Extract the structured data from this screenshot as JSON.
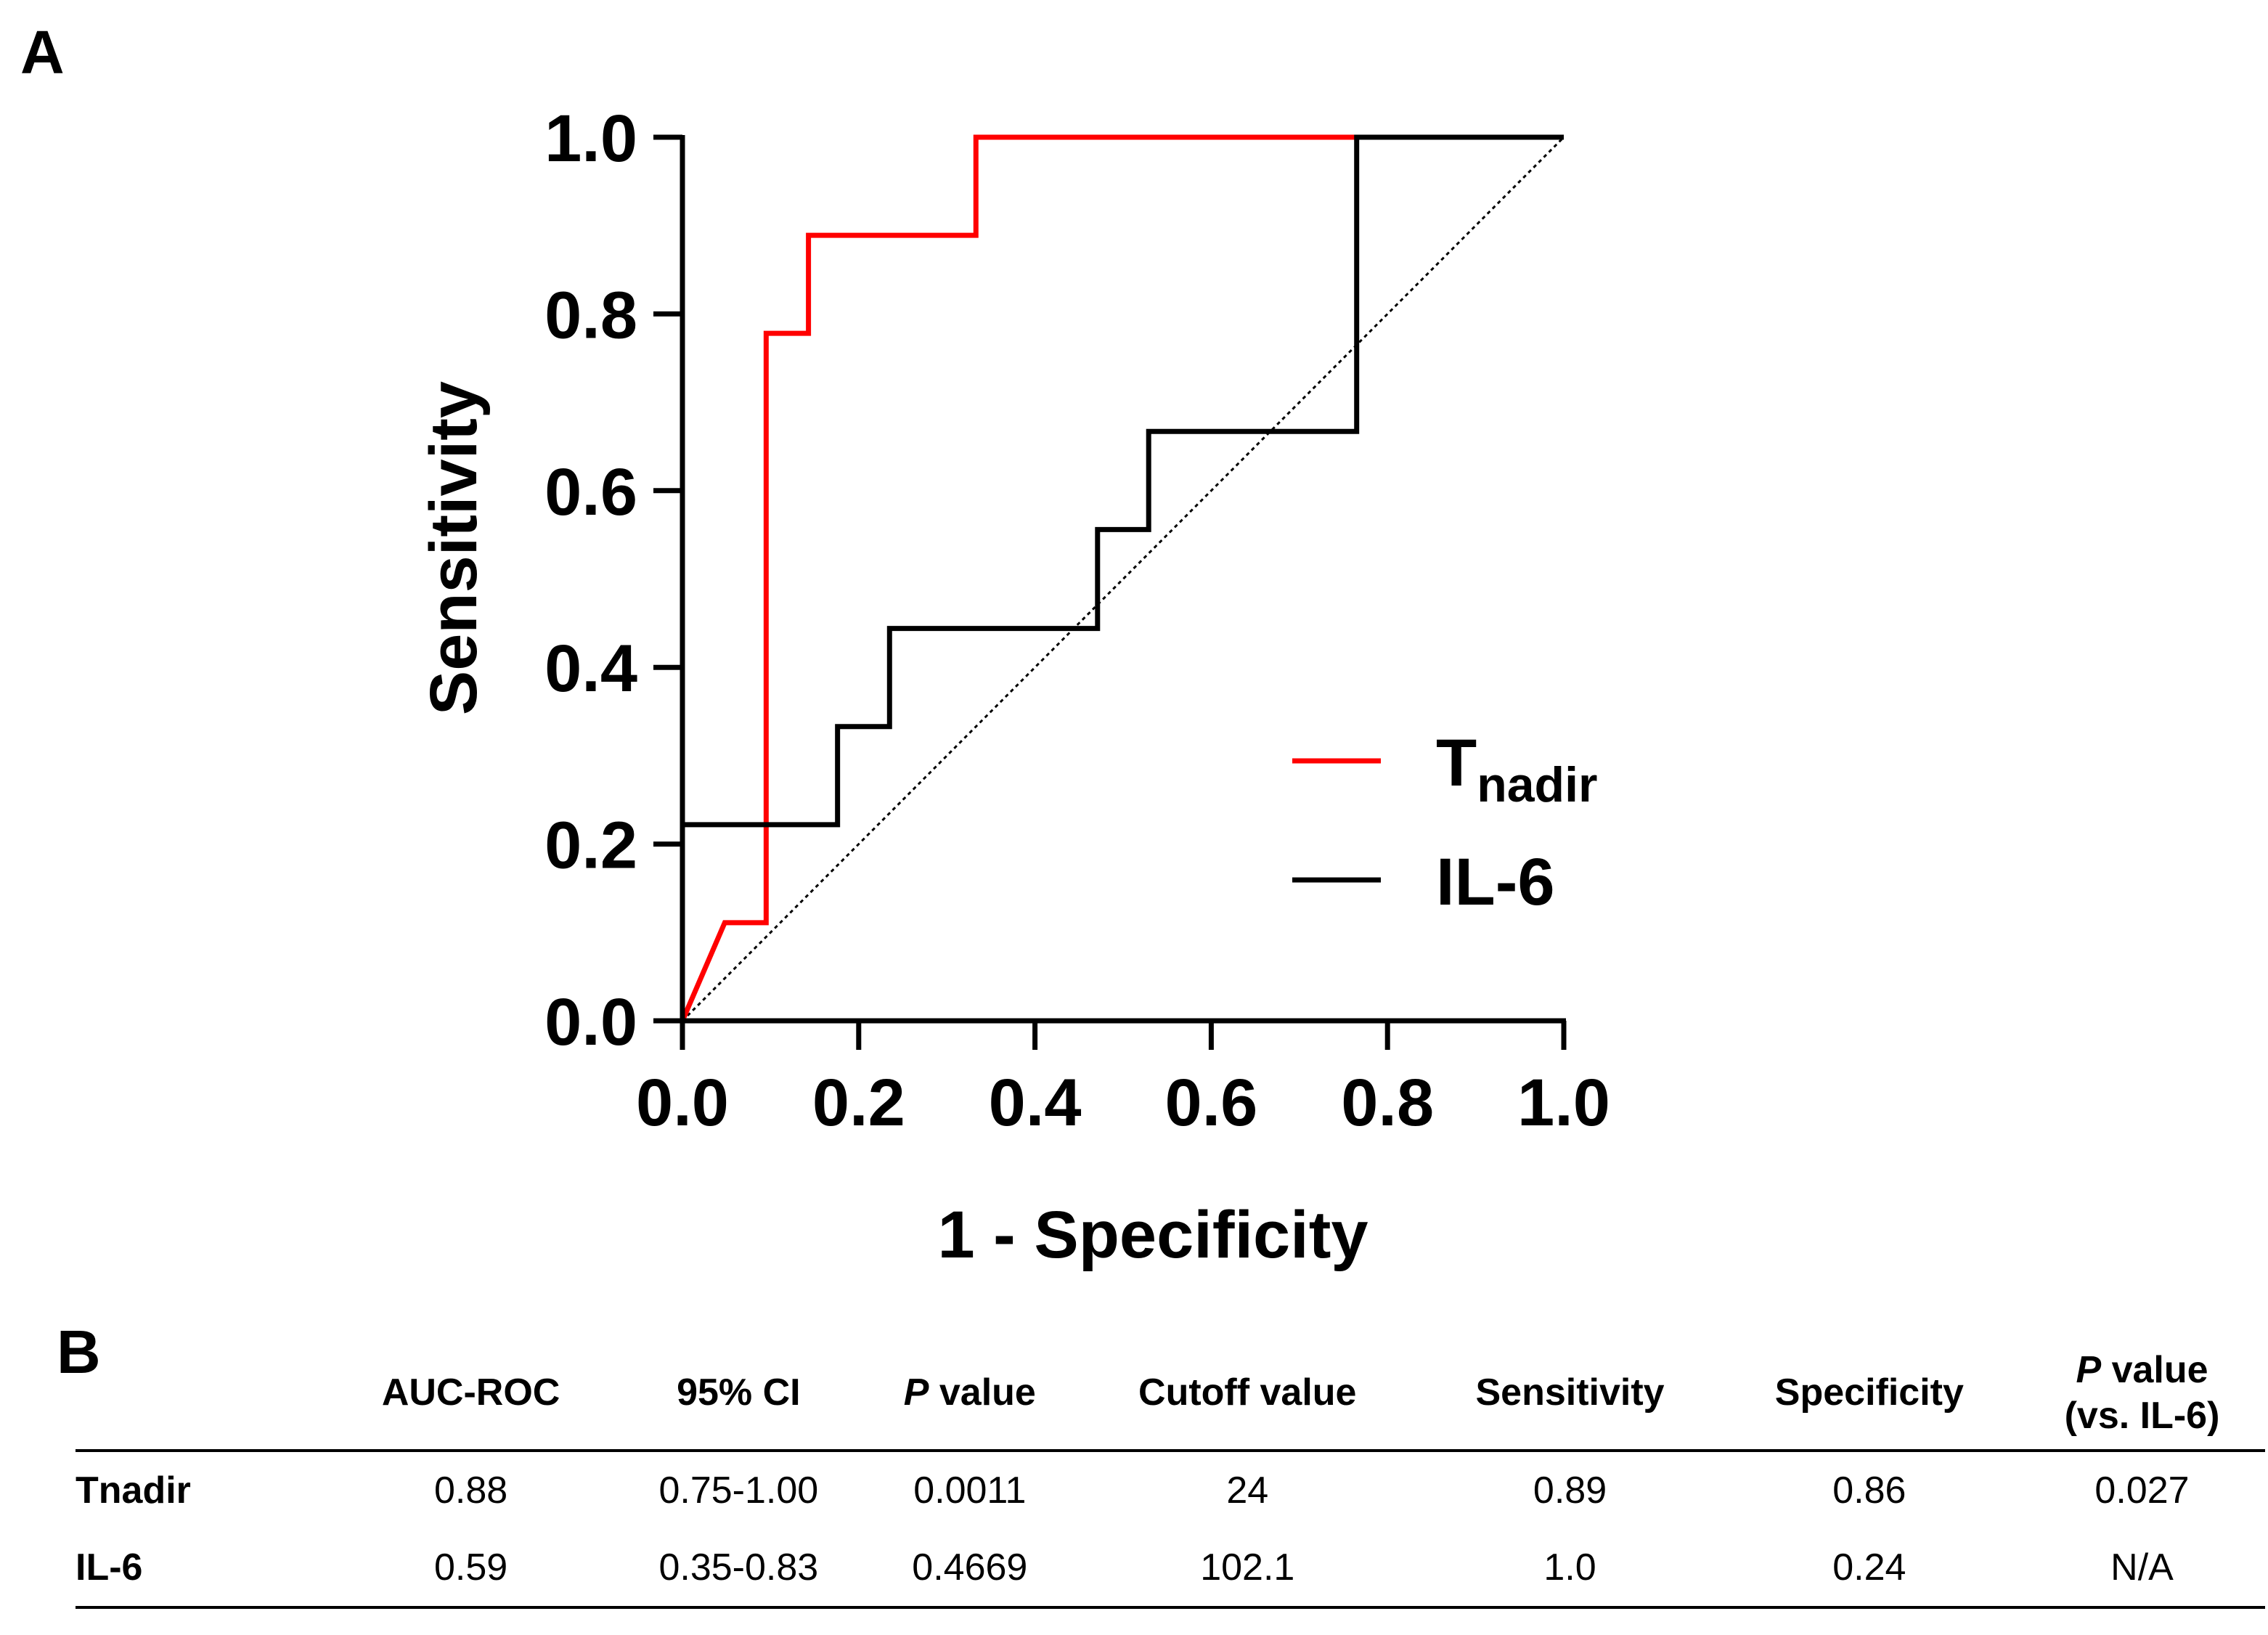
{
  "panel_a_label": "A",
  "panel_b_label": "B",
  "chart_data": {
    "type": "line",
    "title": "",
    "xlabel": "1 - Specificity",
    "ylabel": "Sensitivity",
    "xlim": [
      0,
      1
    ],
    "ylim": [
      0,
      1
    ],
    "xticks": [
      "0.0",
      "0.2",
      "0.4",
      "0.6",
      "0.8",
      "1.0"
    ],
    "yticks": [
      "0.0",
      "0.2",
      "0.4",
      "0.6",
      "0.8",
      "1.0"
    ],
    "grid": false,
    "legend_position": "bottom-right",
    "series": [
      {
        "name": "Tnadir",
        "legend_main": "T",
        "legend_sub": "nadir",
        "color": "#ff0000",
        "x": [
          0,
          0.048,
          0.095,
          0.095,
          0.143,
          0.143,
          0.333,
          0.333,
          1.0
        ],
        "y": [
          0,
          0.111,
          0.111,
          0.778,
          0.778,
          0.889,
          0.889,
          1.0,
          1.0
        ]
      },
      {
        "name": "IL-6",
        "legend_main": "IL-6",
        "legend_sub": "",
        "color": "#000000",
        "x": [
          0,
          0,
          0.176,
          0.176,
          0.235,
          0.235,
          0.471,
          0.471,
          0.529,
          0.529,
          0.765,
          0.765,
          1.0
        ],
        "y": [
          0,
          0.222,
          0.222,
          0.333,
          0.333,
          0.444,
          0.444,
          0.556,
          0.556,
          0.667,
          0.667,
          1.0,
          1.0
        ]
      }
    ],
    "reference_line": {
      "x": [
        0,
        1
      ],
      "y": [
        0,
        1
      ],
      "style": "dotted",
      "color": "#000000"
    }
  },
  "table": {
    "headers": [
      {
        "pre_italic": "",
        "main": ""
      },
      {
        "pre_italic": "",
        "main": "AUC-ROC"
      },
      {
        "pre_italic": "",
        "main": "95% CI"
      },
      {
        "pre_italic": "P",
        "main": " value"
      },
      {
        "pre_italic": "",
        "main": "Cutoff value"
      },
      {
        "pre_italic": "",
        "main": "Sensitivity"
      },
      {
        "pre_italic": "",
        "main": "Specificity"
      },
      {
        "pre_italic": "P",
        "main": " value",
        "line2": "(vs. IL-6)"
      }
    ],
    "rows": [
      [
        "Tnadir",
        "0.88",
        "0.75-1.00",
        "0.0011",
        "24",
        "0.89",
        "0.86",
        "0.027"
      ],
      [
        "IL-6",
        "0.59",
        "0.35-0.83",
        "0.4669",
        "102.1",
        "1.0",
        "0.24",
        "N/A"
      ]
    ]
  }
}
